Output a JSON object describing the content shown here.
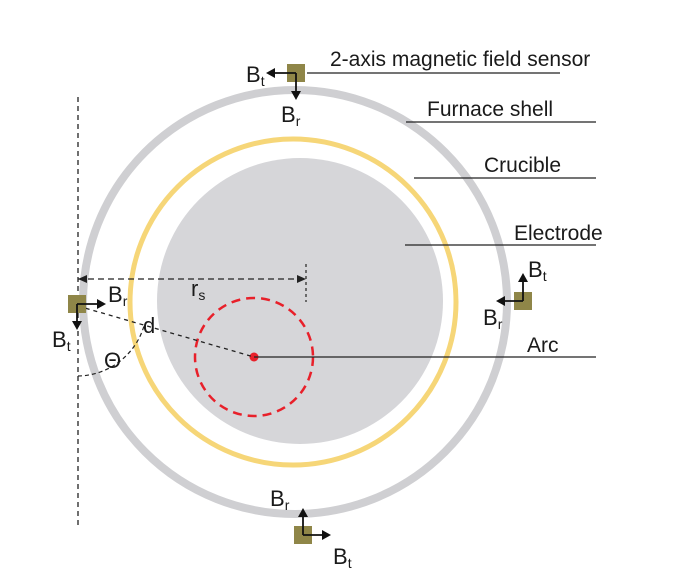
{
  "labels": {
    "sensor": "2-axis magnetic field sensor",
    "furnace_shell": "Furnace shell",
    "crucible": "Crucible",
    "electrode": "Electrode",
    "arc": "Arc",
    "r_main": "r",
    "r_sub": "s",
    "d": "d",
    "theta": "Θ",
    "B": "B",
    "t_sub": "t",
    "r_sub_field": "r"
  },
  "colors": {
    "shell": "#cfcfd2",
    "crucible": "#f6d678",
    "electrode": "#d6d6d9",
    "arc_path": "#e8202a",
    "arc_point": "#e8202a",
    "sensor": "#8f8648"
  }
}
